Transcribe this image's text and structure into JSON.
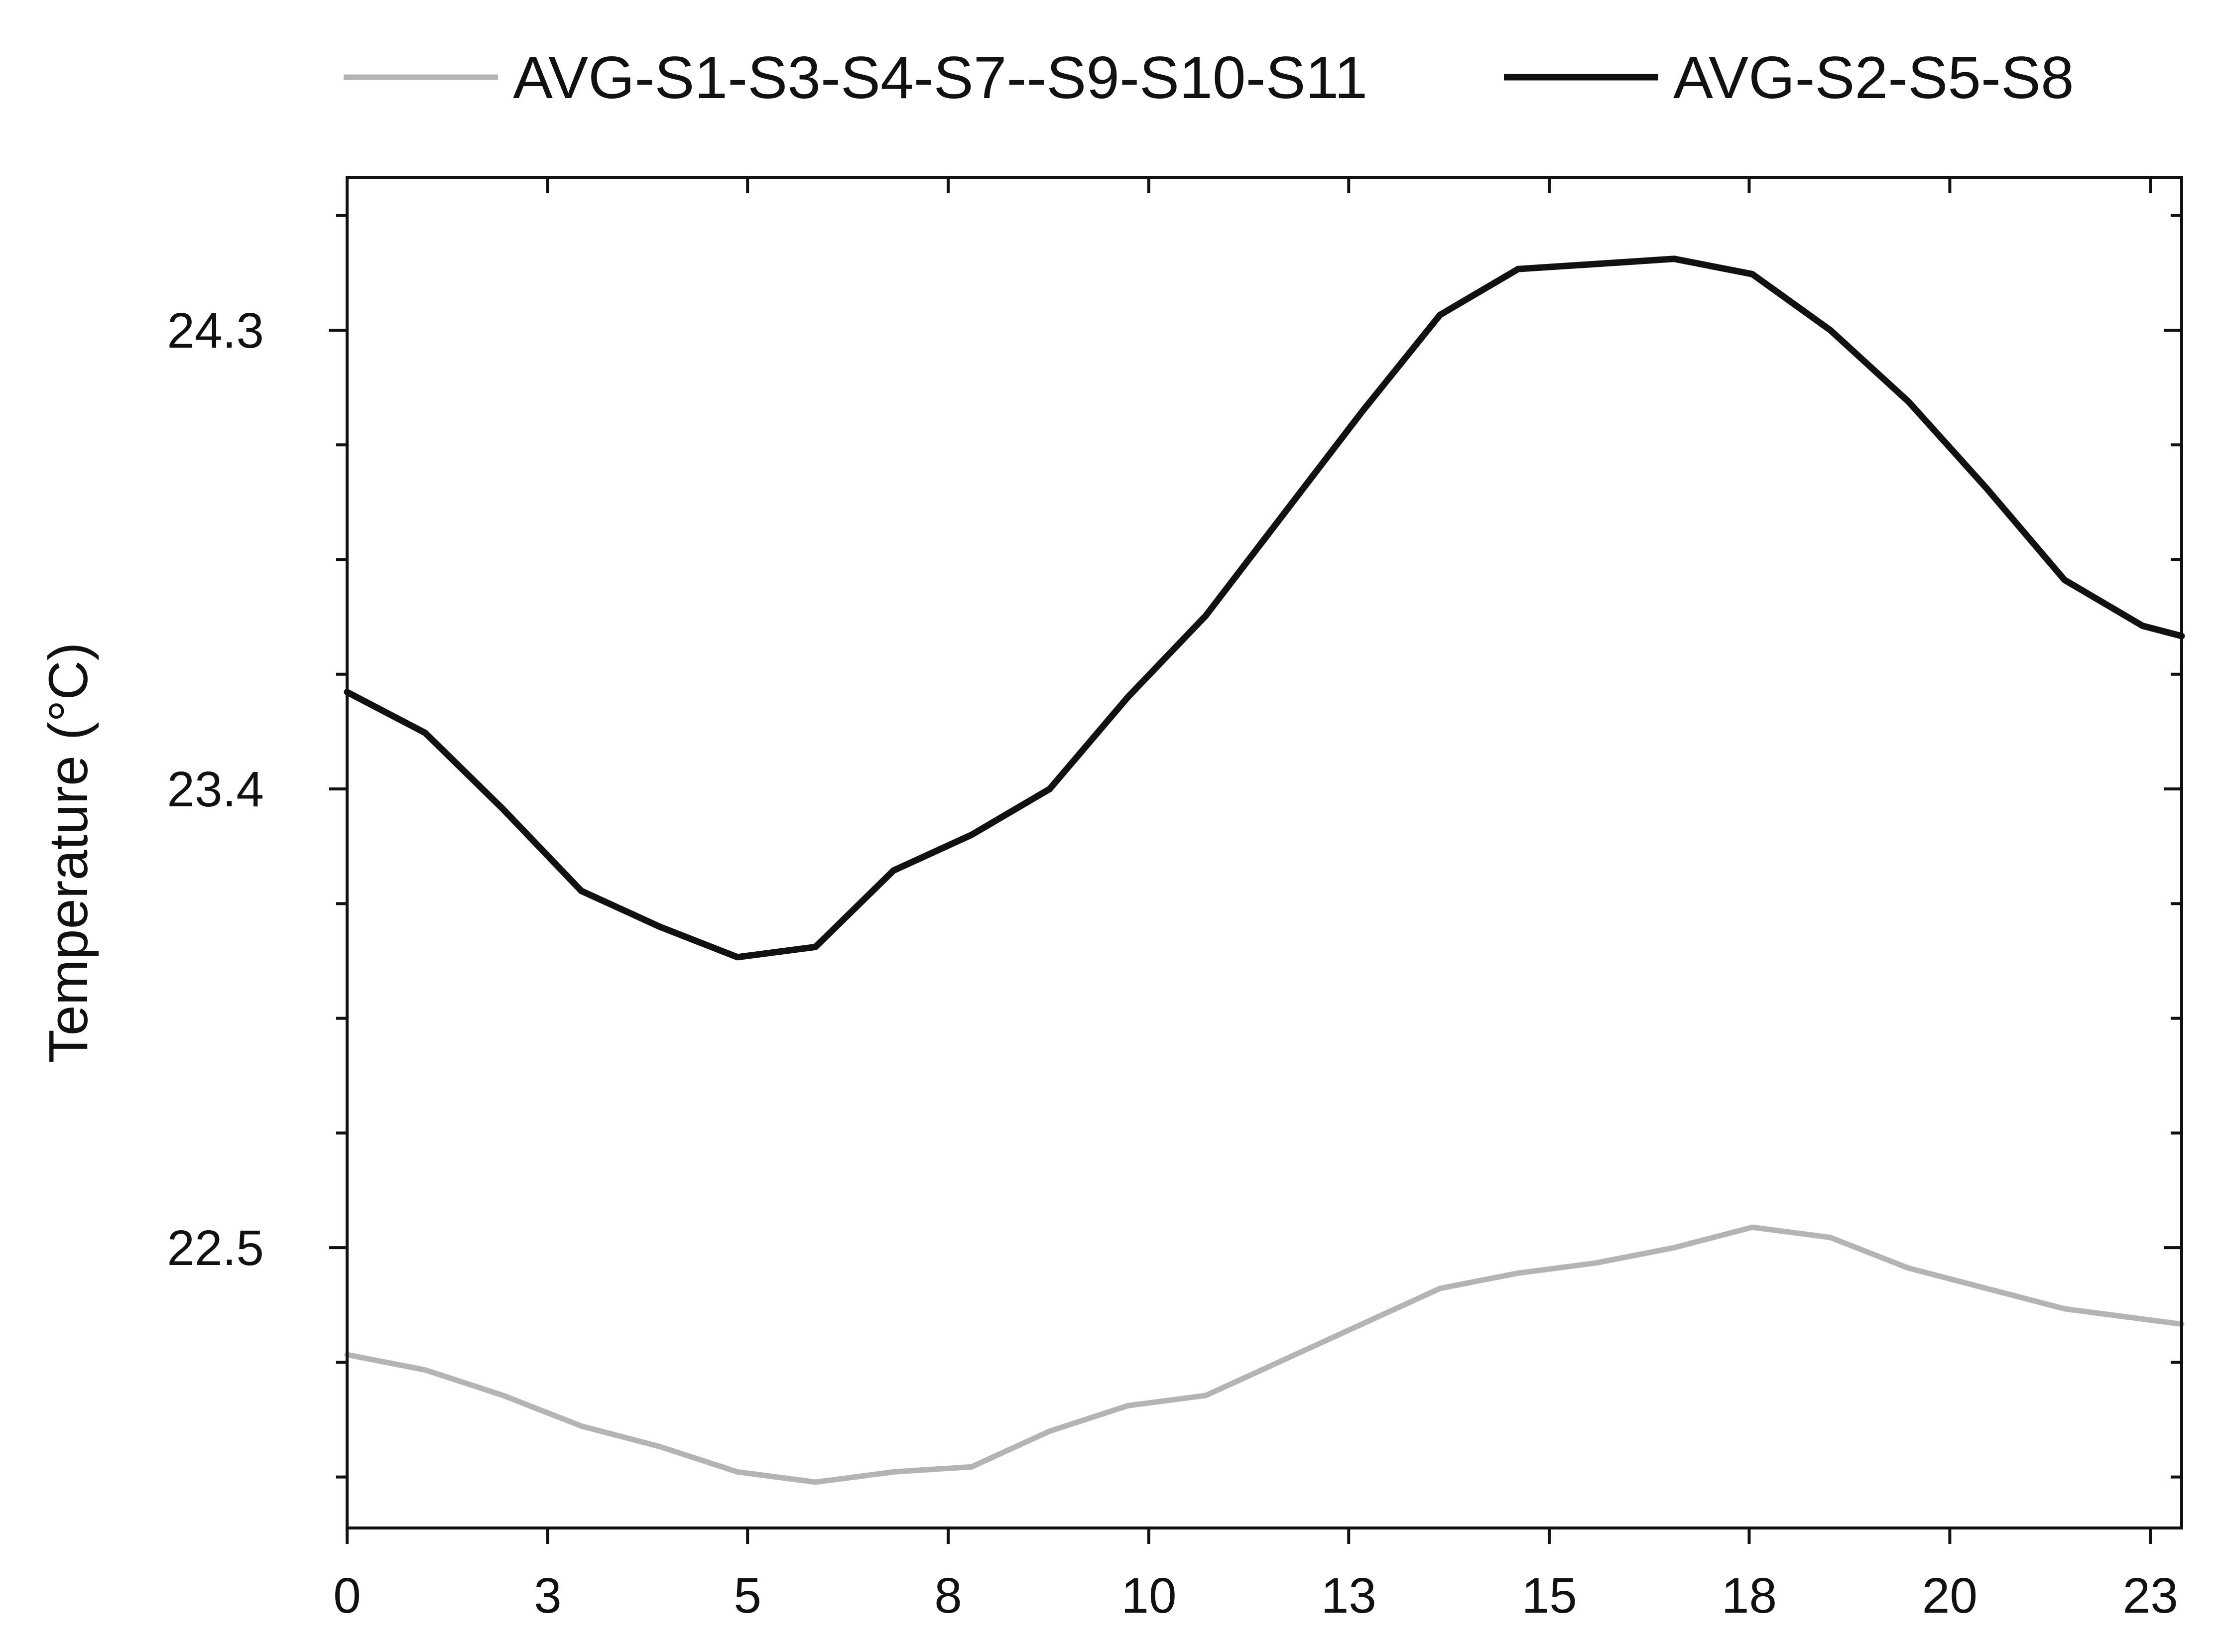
{
  "chart_data": {
    "type": "line",
    "xlabel": "",
    "ylabel": "Temperature (°C)",
    "xlim": [
      0,
      23.5
    ],
    "ylim": [
      21.95,
      24.6
    ],
    "x_ticks": [
      {
        "value": 0,
        "label": "0"
      },
      {
        "value": 2.57,
        "label": "3"
      },
      {
        "value": 5.13,
        "label": "5"
      },
      {
        "value": 7.7,
        "label": "8"
      },
      {
        "value": 10.27,
        "label": "10"
      },
      {
        "value": 12.83,
        "label": "13"
      },
      {
        "value": 15.4,
        "label": "15"
      },
      {
        "value": 17.96,
        "label": "18"
      },
      {
        "value": 20.53,
        "label": "20"
      },
      {
        "value": 23.1,
        "label": "23"
      }
    ],
    "y_ticks": [
      {
        "value": 22.5,
        "label": "22.5"
      },
      {
        "value": 23.4,
        "label": "23.4"
      },
      {
        "value": 24.3,
        "label": "24.3"
      }
    ],
    "legend_position": "top",
    "grid": false,
    "series": [
      {
        "name": "AVG-S1-S3-S4-S7--S9-S10-S11",
        "color": "#b4b4b4",
        "x": [
          0,
          1,
          2,
          3,
          4,
          5,
          6,
          7,
          8,
          9,
          10,
          11,
          12,
          13,
          14,
          15,
          16,
          17,
          18,
          19,
          20,
          21,
          22,
          23,
          23.5
        ],
        "y": [
          22.29,
          22.26,
          22.21,
          22.15,
          22.11,
          22.06,
          22.04,
          22.06,
          22.07,
          22.14,
          22.19,
          22.21,
          22.28,
          22.35,
          22.42,
          22.45,
          22.47,
          22.5,
          22.54,
          22.52,
          22.46,
          22.42,
          22.38,
          22.36,
          22.35
        ]
      },
      {
        "name": "AVG-S2-S5-S8",
        "color": "#111111",
        "x": [
          0,
          1,
          2,
          3,
          4,
          5,
          6,
          7,
          8,
          9,
          10,
          11,
          12,
          13,
          14,
          15,
          16,
          17,
          18,
          19,
          20,
          21,
          22,
          23,
          23.5
        ],
        "y": [
          23.59,
          23.51,
          23.36,
          23.2,
          23.13,
          23.07,
          23.09,
          23.24,
          23.31,
          23.4,
          23.58,
          23.74,
          23.94,
          24.14,
          24.33,
          24.42,
          24.43,
          24.44,
          24.41,
          24.3,
          24.16,
          23.99,
          23.81,
          23.72,
          23.7
        ]
      }
    ]
  }
}
